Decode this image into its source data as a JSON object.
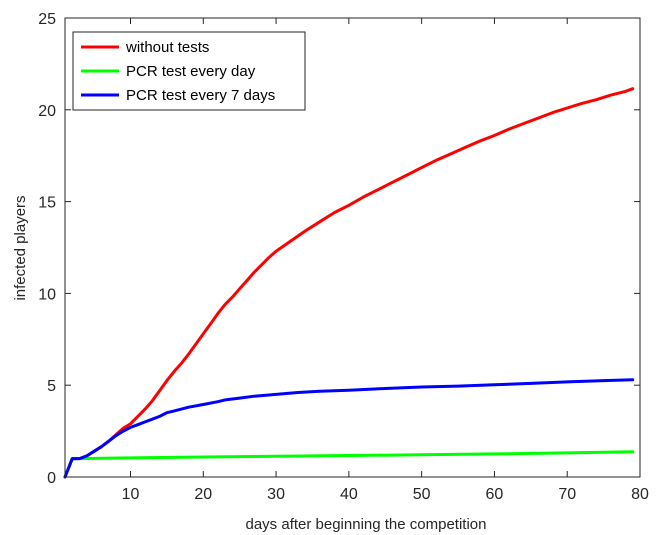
{
  "chart_data": {
    "type": "line",
    "title": "",
    "xlabel": "days after beginning the competition",
    "ylabel": "infected players",
    "xlim": [
      1,
      80
    ],
    "ylim": [
      0,
      25
    ],
    "x_ticks": [
      10,
      20,
      30,
      40,
      50,
      60,
      70,
      80
    ],
    "y_ticks": [
      0,
      5,
      10,
      15,
      20,
      25
    ],
    "grid": false,
    "legend_position": "top-left",
    "series": [
      {
        "name": "without tests",
        "color": "#ff0000",
        "points": [
          [
            1,
            0
          ],
          [
            2,
            1
          ],
          [
            3,
            1
          ],
          [
            4,
            1.15
          ],
          [
            5,
            1.4
          ],
          [
            6,
            1.65
          ],
          [
            7,
            1.95
          ],
          [
            8,
            2.3
          ],
          [
            9,
            2.65
          ],
          [
            10,
            2.9
          ],
          [
            11,
            3.3
          ],
          [
            12,
            3.7
          ],
          [
            13,
            4.15
          ],
          [
            14,
            4.7
          ],
          [
            15,
            5.25
          ],
          [
            16,
            5.75
          ],
          [
            17,
            6.2
          ],
          [
            18,
            6.7
          ],
          [
            19,
            7.25
          ],
          [
            20,
            7.8
          ],
          [
            21,
            8.35
          ],
          [
            22,
            8.9
          ],
          [
            23,
            9.4
          ],
          [
            24,
            9.8
          ],
          [
            25,
            10.25
          ],
          [
            26,
            10.7
          ],
          [
            27,
            11.15
          ],
          [
            28,
            11.55
          ],
          [
            29,
            11.95
          ],
          [
            30,
            12.3
          ],
          [
            32,
            12.85
          ],
          [
            34,
            13.4
          ],
          [
            36,
            13.9
          ],
          [
            38,
            14.4
          ],
          [
            40,
            14.8
          ],
          [
            42,
            15.25
          ],
          [
            44,
            15.65
          ],
          [
            46,
            16.05
          ],
          [
            48,
            16.45
          ],
          [
            50,
            16.85
          ],
          [
            52,
            17.25
          ],
          [
            54,
            17.6
          ],
          [
            56,
            17.95
          ],
          [
            58,
            18.3
          ],
          [
            60,
            18.6
          ],
          [
            62,
            18.95
          ],
          [
            64,
            19.25
          ],
          [
            66,
            19.55
          ],
          [
            68,
            19.85
          ],
          [
            70,
            20.1
          ],
          [
            72,
            20.35
          ],
          [
            74,
            20.55
          ],
          [
            76,
            20.8
          ],
          [
            78,
            21.0
          ],
          [
            79,
            21.15
          ]
        ]
      },
      {
        "name": "PCR test every day",
        "color": "#00ff00",
        "points": [
          [
            1,
            0
          ],
          [
            2,
            1
          ],
          [
            3,
            1
          ],
          [
            10,
            1.04
          ],
          [
            20,
            1.09
          ],
          [
            30,
            1.13
          ],
          [
            40,
            1.17
          ],
          [
            50,
            1.21
          ],
          [
            60,
            1.26
          ],
          [
            70,
            1.31
          ],
          [
            79,
            1.37
          ]
        ]
      },
      {
        "name": "PCR test every 7 days",
        "color": "#0000ff",
        "points": [
          [
            1,
            0
          ],
          [
            2,
            1
          ],
          [
            3,
            1
          ],
          [
            4,
            1.15
          ],
          [
            5,
            1.4
          ],
          [
            6,
            1.65
          ],
          [
            7,
            1.95
          ],
          [
            8,
            2.25
          ],
          [
            9,
            2.5
          ],
          [
            10,
            2.7
          ],
          [
            11,
            2.85
          ],
          [
            12,
            3.0
          ],
          [
            13,
            3.15
          ],
          [
            14,
            3.3
          ],
          [
            15,
            3.5
          ],
          [
            16,
            3.6
          ],
          [
            17,
            3.7
          ],
          [
            18,
            3.8
          ],
          [
            20,
            3.95
          ],
          [
            22,
            4.1
          ],
          [
            23,
            4.2
          ],
          [
            25,
            4.3
          ],
          [
            27,
            4.4
          ],
          [
            30,
            4.5
          ],
          [
            33,
            4.6
          ],
          [
            36,
            4.67
          ],
          [
            40,
            4.73
          ],
          [
            45,
            4.82
          ],
          [
            50,
            4.9
          ],
          [
            55,
            4.95
          ],
          [
            60,
            5.02
          ],
          [
            65,
            5.1
          ],
          [
            70,
            5.18
          ],
          [
            75,
            5.25
          ],
          [
            79,
            5.3
          ]
        ]
      }
    ]
  }
}
